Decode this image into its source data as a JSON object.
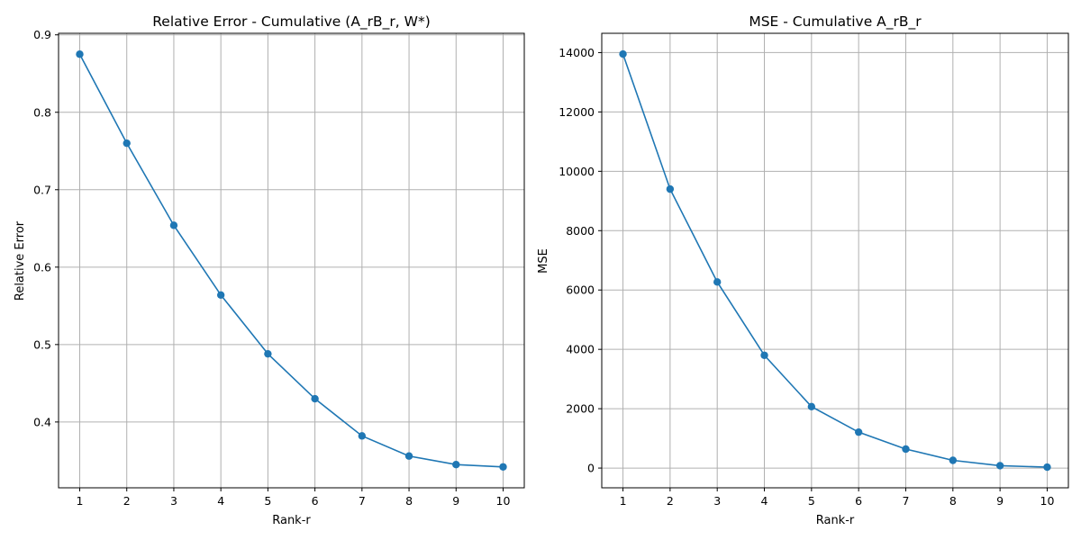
{
  "chart_data": [
    {
      "type": "line",
      "title": "Relative Error - Cumulative (A_rB_r, W*)",
      "xlabel": "Rank-r",
      "ylabel": "Relative Error",
      "x": [
        1,
        2,
        3,
        4,
        5,
        6,
        7,
        8,
        9,
        10
      ],
      "series": [
        {
          "values": [
            0.875,
            0.76,
            0.654,
            0.564,
            0.488,
            0.43,
            0.382,
            0.356,
            0.345,
            0.342
          ]
        }
      ],
      "xlim": [
        0.55,
        10.45
      ],
      "ylim": [
        0.315,
        0.902
      ],
      "xticks": [
        "1",
        "2",
        "3",
        "4",
        "5",
        "6",
        "7",
        "8",
        "9",
        "10"
      ],
      "yticks": [
        0.4,
        0.5,
        0.6,
        0.7,
        0.8,
        0.9
      ],
      "yticklabels": [
        "0.4",
        "0.5",
        "0.6",
        "0.7",
        "0.8",
        "0.9"
      ],
      "grid": true,
      "color": "#1f77b4",
      "marker": "circle"
    },
    {
      "type": "line",
      "title": "MSE - Cumulative A_rB_r",
      "xlabel": "Rank-r",
      "ylabel": "MSE",
      "x": [
        1,
        2,
        3,
        4,
        5,
        6,
        7,
        8,
        9,
        10
      ],
      "series": [
        {
          "values": [
            13950,
            9400,
            6270,
            3800,
            2070,
            1210,
            640,
            260,
            80,
            30
          ]
        }
      ],
      "xlim": [
        0.55,
        10.45
      ],
      "ylim": [
        -665,
        14650
      ],
      "xticks": [
        "1",
        "2",
        "3",
        "4",
        "5",
        "6",
        "7",
        "8",
        "9",
        "10"
      ],
      "yticks": [
        0,
        2000,
        4000,
        6000,
        8000,
        10000,
        12000,
        14000
      ],
      "yticklabels": [
        "0",
        "2000",
        "4000",
        "6000",
        "8000",
        "10000",
        "12000",
        "14000"
      ],
      "grid": true,
      "color": "#1f77b4",
      "marker": "circle"
    }
  ]
}
